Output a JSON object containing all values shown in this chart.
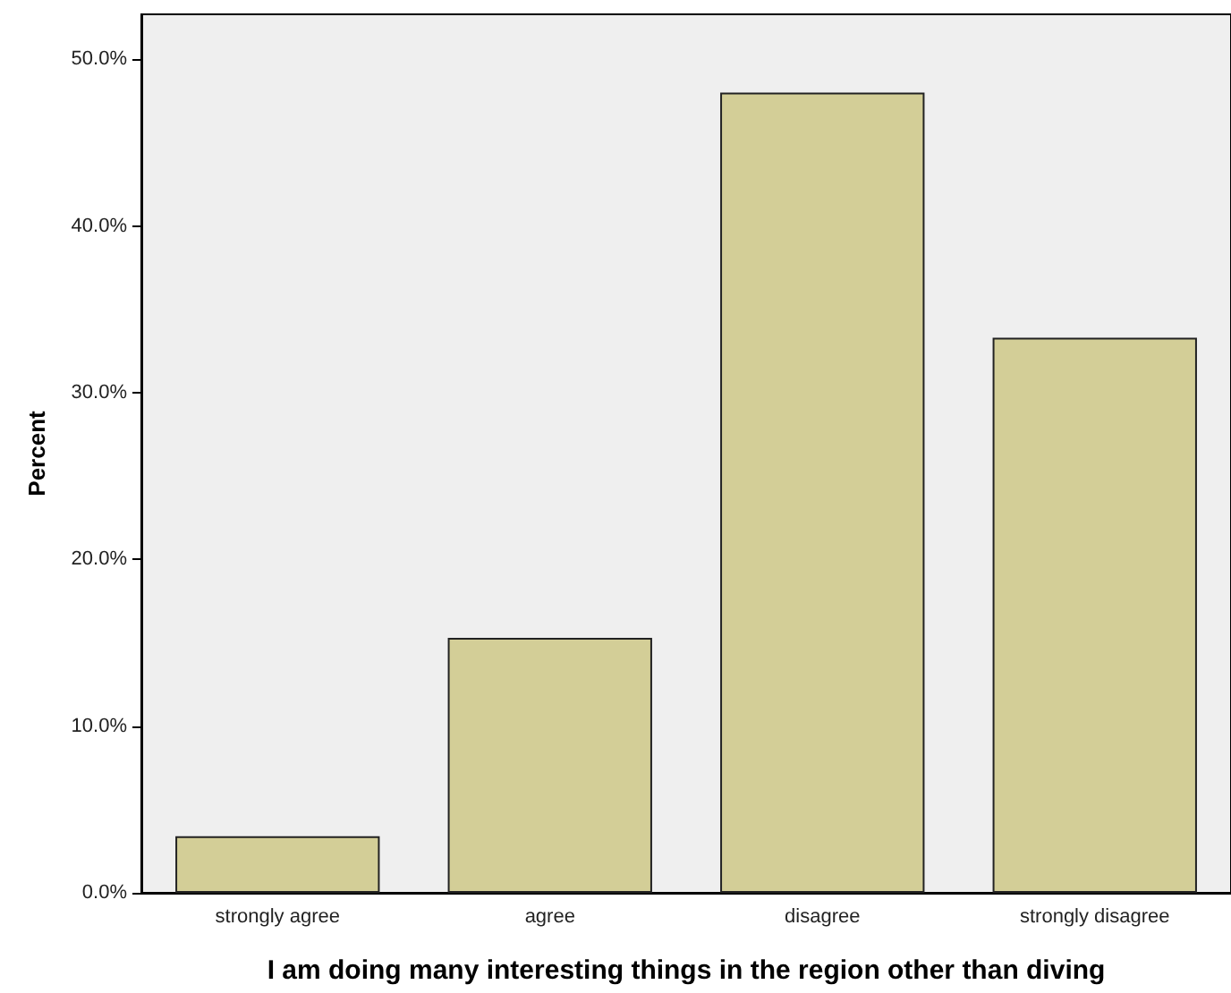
{
  "chart_data": {
    "type": "bar",
    "xlabel": "I am doing many interesting things in the region other than diving",
    "ylabel": "Percent",
    "categories": [
      "strongly agree",
      "agree",
      "disagree",
      "strongly disagree"
    ],
    "values": [
      3.4,
      15.3,
      48.0,
      33.3
    ],
    "color": "#d3ce97",
    "ylim": [
      0,
      52.7
    ],
    "yticks": [
      {
        "value": 0,
        "label": "0.0%"
      },
      {
        "value": 10,
        "label": "10.0%"
      },
      {
        "value": 20,
        "label": "20.0%"
      },
      {
        "value": 30,
        "label": "30.0%"
      },
      {
        "value": 40,
        "label": "40.0%"
      },
      {
        "value": 50,
        "label": "50.0%"
      }
    ],
    "grid": false
  }
}
